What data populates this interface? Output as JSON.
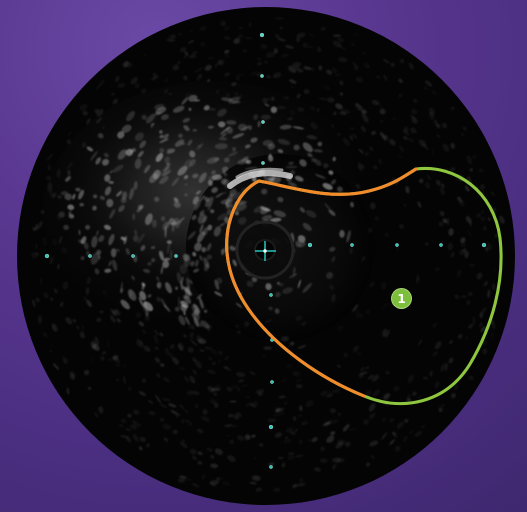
{
  "image": {
    "colors": {
      "background": "#5b3a93",
      "scan_black": "#050505",
      "tissue_gray": "#bcbcbc",
      "catheter_dot": "#26c2b4",
      "border_orange": "#f28b2b",
      "border_green": "#8fc63f",
      "marker_green": "#7dbf3a"
    },
    "labels": {
      "region_marker": "1"
    }
  }
}
